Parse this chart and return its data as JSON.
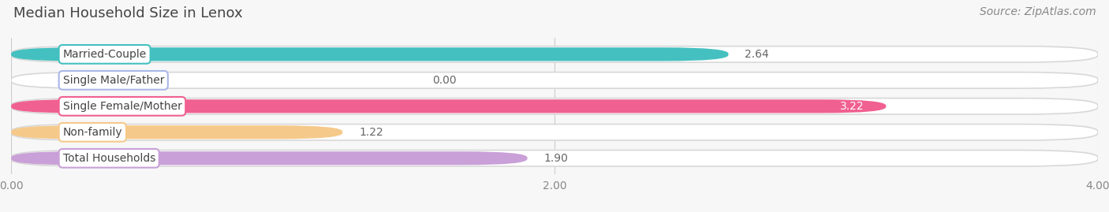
{
  "title": "Median Household Size in Lenox",
  "source": "Source: ZipAtlas.com",
  "categories": [
    "Married-Couple",
    "Single Male/Father",
    "Single Female/Mother",
    "Non-family",
    "Total Households"
  ],
  "values": [
    2.64,
    0.0,
    3.22,
    1.22,
    1.9
  ],
  "bar_colors": [
    "#45c0c0",
    "#aab8e8",
    "#f06090",
    "#f5c98a",
    "#c9a0d8"
  ],
  "xlim_max": 4.0,
  "xticks": [
    0.0,
    2.0,
    4.0
  ],
  "xtick_labels": [
    "0.00",
    "2.00",
    "4.00"
  ],
  "background_color": "#f7f7f7",
  "bar_bg_color": "#ececec",
  "bar_bg_border": "#e0e0e0",
  "title_fontsize": 13,
  "source_fontsize": 10,
  "label_fontsize": 10,
  "value_fontsize": 10,
  "tick_fontsize": 10
}
